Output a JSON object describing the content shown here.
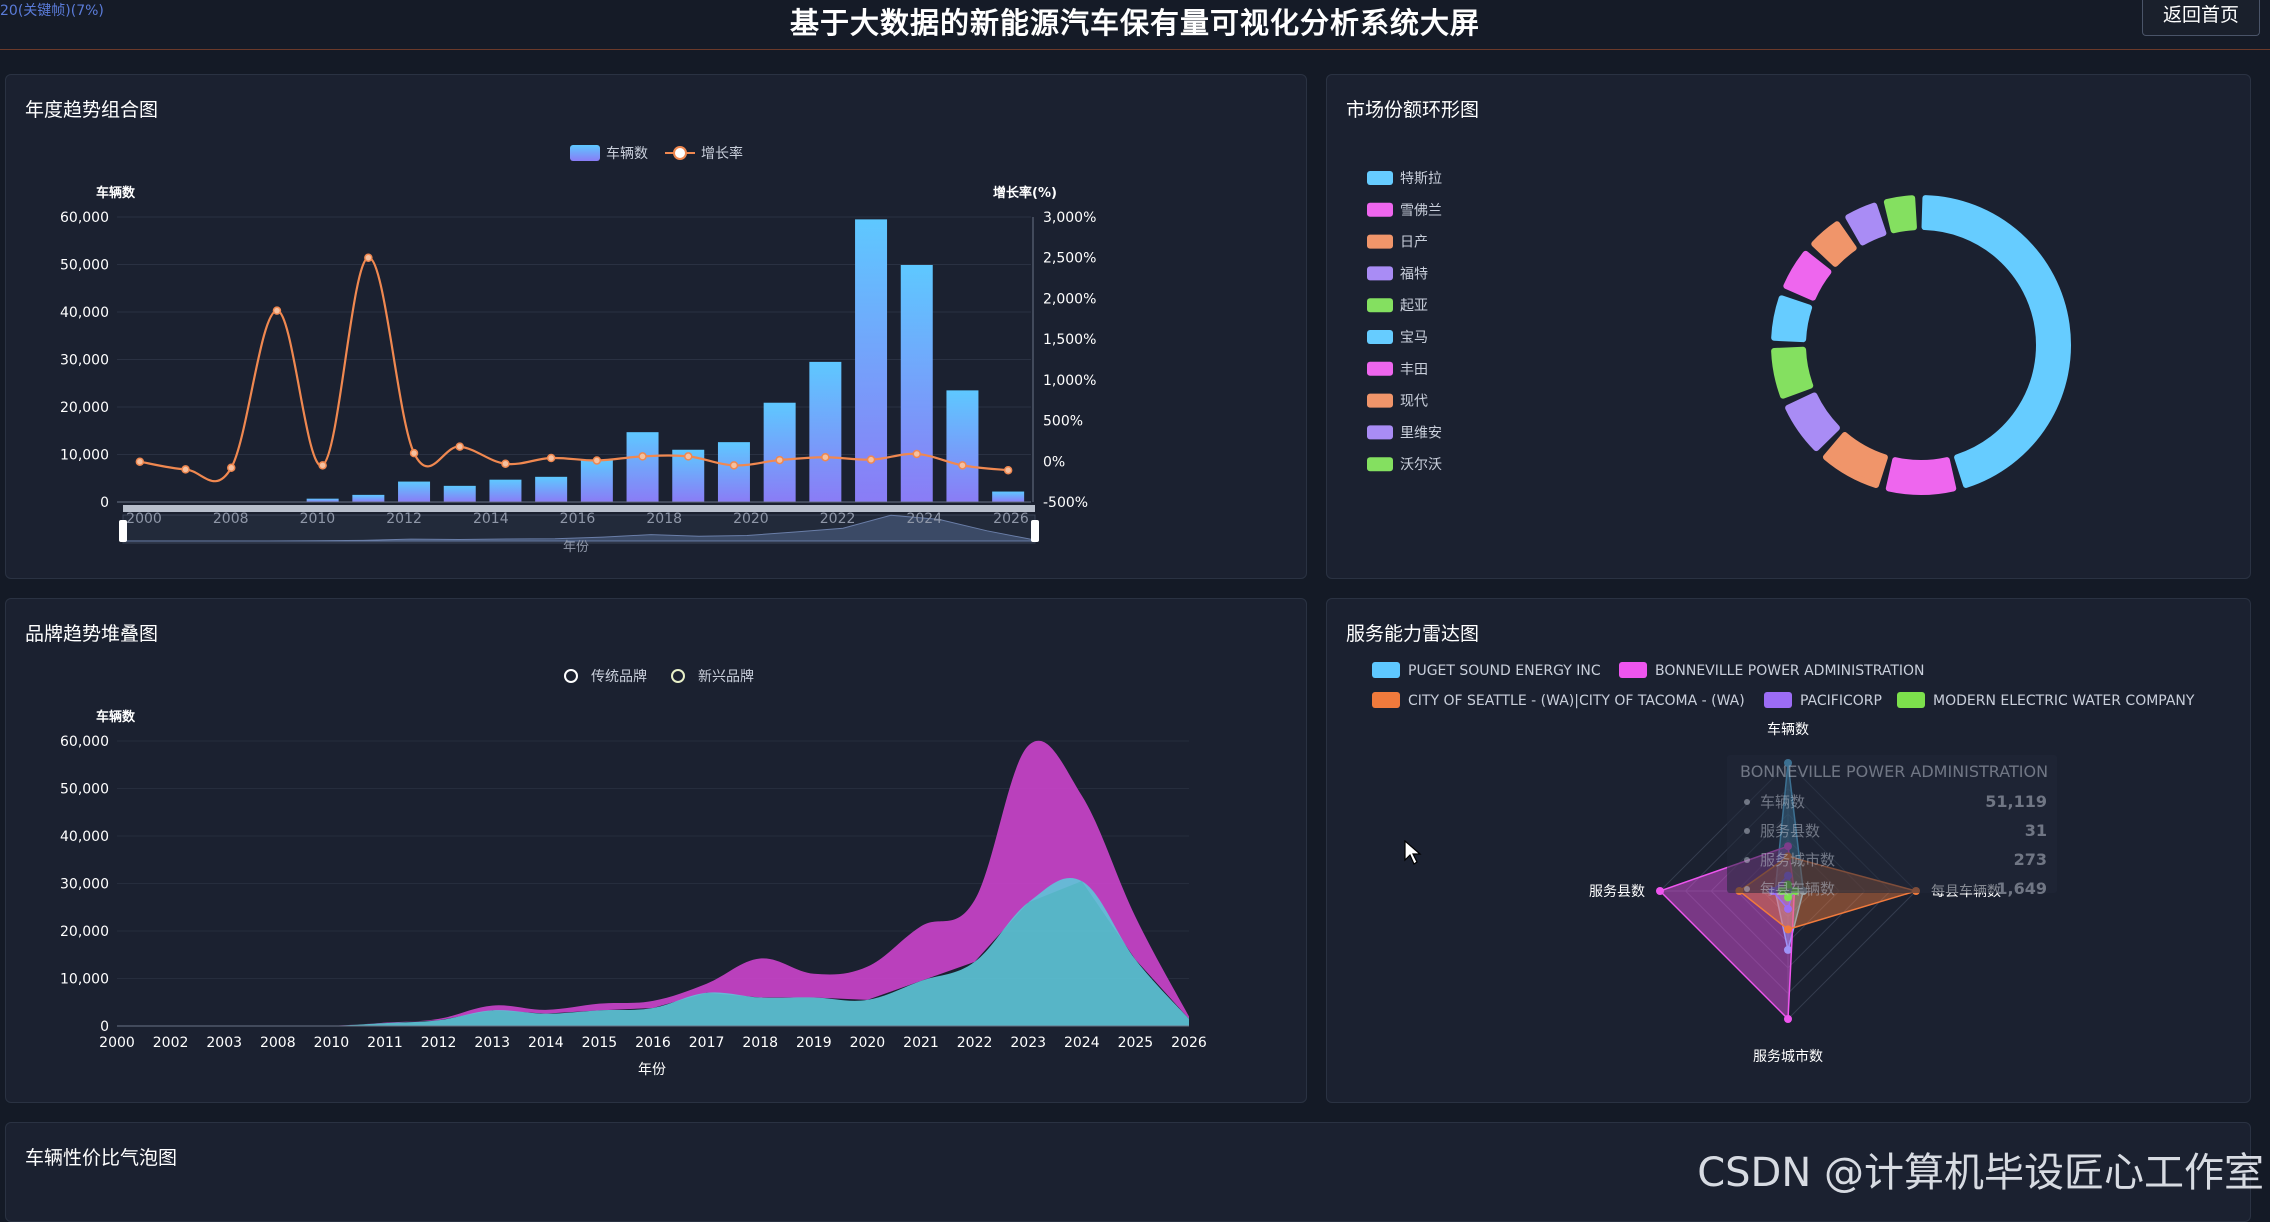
{
  "header": {
    "fps": "20(关键帧)(7%)",
    "title": "基于大数据的新能源汽车保有量可视化分析系统大屏",
    "home_button": "返回首页"
  },
  "panels": {
    "trend": "年度趋势组合图",
    "market": "市场份额环形图",
    "brand": "品牌趋势堆叠图",
    "radar": "服务能力雷达图",
    "bubble": "车辆性价比气泡图"
  },
  "watermark": "CSDN @计算机毕设匠心工作室",
  "chart_data": [
    {
      "type": "bar",
      "title": "年度趋势组合图",
      "legend": [
        "车辆数",
        "增长率"
      ],
      "xlabel": "年份",
      "ylabel": "车辆数",
      "ylabel_right": "增长率(%)",
      "ylim": [
        0,
        60000
      ],
      "ylim_right": [
        -500,
        3000
      ],
      "y_ticks": [
        "60,000",
        "50,000",
        "40,000",
        "30,000",
        "20,000",
        "10,000",
        "0"
      ],
      "y_right_ticks": [
        "3,000%",
        "2,500%",
        "2,000%",
        "1,500%",
        "1,000%",
        "500%",
        "0%",
        "-500%"
      ],
      "x_tick_labels": [
        "2000",
        "2008",
        "2010",
        "2012",
        "2014",
        "2016",
        "2018",
        "2020",
        "2022",
        "2024",
        "2026"
      ],
      "categories": [
        "2000",
        "2002",
        "2008",
        "2010",
        "2011",
        "2012",
        "2013",
        "2014",
        "2015",
        "2016",
        "2017",
        "2018",
        "2019",
        "2020",
        "2021",
        "2022",
        "2023",
        "2024",
        "2025",
        "2026"
      ],
      "series": [
        {
          "name": "车辆数",
          "kind": "bar",
          "values": [
            20,
            10,
            20,
            30,
            700,
            1500,
            4300,
            3400,
            4700,
            5300,
            8900,
            14700,
            11000,
            12600,
            20900,
            29500,
            59500,
            49900,
            23500,
            2200
          ]
        },
        {
          "name": "增长率",
          "kind": "line",
          "values": [
            -5,
            -100,
            -80,
            1850,
            -50,
            2500,
            100,
            180,
            -30,
            40,
            10,
            60,
            60,
            -50,
            15,
            50,
            20,
            90,
            -50,
            -110
          ]
        }
      ],
      "colors": {
        "bar_top": "#5ec8ff",
        "bar_bottom": "#8a7cf6",
        "line": "#f08850"
      },
      "datazoom": true
    },
    {
      "type": "pie",
      "title": "市场份额环形图",
      "donut": true,
      "categories": [
        "特斯拉",
        "雪佛兰",
        "日产",
        "福特",
        "起亚",
        "宝马",
        "丰田",
        "现代",
        "里维安",
        "沃尔沃"
      ],
      "values": [
        45.0,
        7.1,
        6.3,
        5.4,
        5.0,
        4.4,
        4.1,
        3.3,
        3.1,
        2.8
      ],
      "colors": [
        "#66ccff",
        "#ee66ee",
        "#f0956a",
        "#a98cf5",
        "#84e060",
        "#66ccff",
        "#ee66ee",
        "#f0956a",
        "#a98cf5",
        "#84e060"
      ]
    },
    {
      "type": "area",
      "title": "品牌趋势堆叠图",
      "stacked": true,
      "legend": [
        "传统品牌",
        "新兴品牌"
      ],
      "xlabel": "年份",
      "ylabel": "车辆数",
      "ylim": [
        0,
        60000
      ],
      "y_ticks": [
        "60,000",
        "50,000",
        "40,000",
        "30,000",
        "20,000",
        "10,000",
        "0"
      ],
      "categories": [
        "2000",
        "2002",
        "2003",
        "2008",
        "2010",
        "2011",
        "2012",
        "2013",
        "2014",
        "2015",
        "2016",
        "2017",
        "2018",
        "2019",
        "2020",
        "2021",
        "2022",
        "2023",
        "2024",
        "2025",
        "2026"
      ],
      "series": [
        {
          "name": "传统品牌",
          "values": [
            20,
            10,
            20,
            20,
            30,
            600,
            1200,
            3300,
            2600,
            3300,
            3800,
            7000,
            6000,
            6000,
            5500,
            9500,
            13500,
            26000,
            30500,
            14000,
            1500
          ]
        },
        {
          "name": "新兴品牌",
          "values": [
            0,
            0,
            0,
            0,
            0,
            100,
            300,
            1000,
            800,
            1400,
            1500,
            1900,
            8200,
            5000,
            7000,
            11500,
            13000,
            33000,
            18000,
            9000,
            500
          ]
        }
      ],
      "colors": [
        "#5ec5d8",
        "#cc44cc"
      ]
    },
    {
      "type": "radar",
      "title": "服务能力雷达图",
      "indicators": [
        "车辆数",
        "每县车辆数",
        "服务城市数",
        "服务县数"
      ],
      "series": [
        {
          "name": "PUGET SOUND ENERGY INC",
          "values": [
            1.0,
            0.12,
            0.46,
            0.1
          ]
        },
        {
          "name": "BONNEVILLE POWER ADMINISTRATION",
          "values": [
            0.35,
            0.05,
            1.0,
            1.0
          ]
        },
        {
          "name": "CITY OF SEATTLE - (WA)|CITY OF TACOMA - (WA)",
          "values": [
            0.27,
            1.0,
            0.3,
            0.38
          ]
        },
        {
          "name": "PACIFICORP",
          "values": [
            0.12,
            0.04,
            0.14,
            0.12
          ]
        },
        {
          "name": "MODERN ELECTRIC WATER COMPANY",
          "values": [
            0.05,
            0.06,
            0.05,
            0.05
          ]
        }
      ],
      "colors": [
        "#5ec8ff",
        "#ee55ee",
        "#f07a3c",
        "#9c6cf5",
        "#7ce04c"
      ],
      "tooltip": {
        "title": "BONNEVILLE POWER ADMINISTRATION",
        "rows": [
          {
            "label": "车辆数",
            "value": "51,119"
          },
          {
            "label": "服务县数",
            "value": "31"
          },
          {
            "label": "服务城市数",
            "value": "273"
          },
          {
            "label": "每县车辆数",
            "value": "1,649"
          }
        ]
      }
    }
  ]
}
